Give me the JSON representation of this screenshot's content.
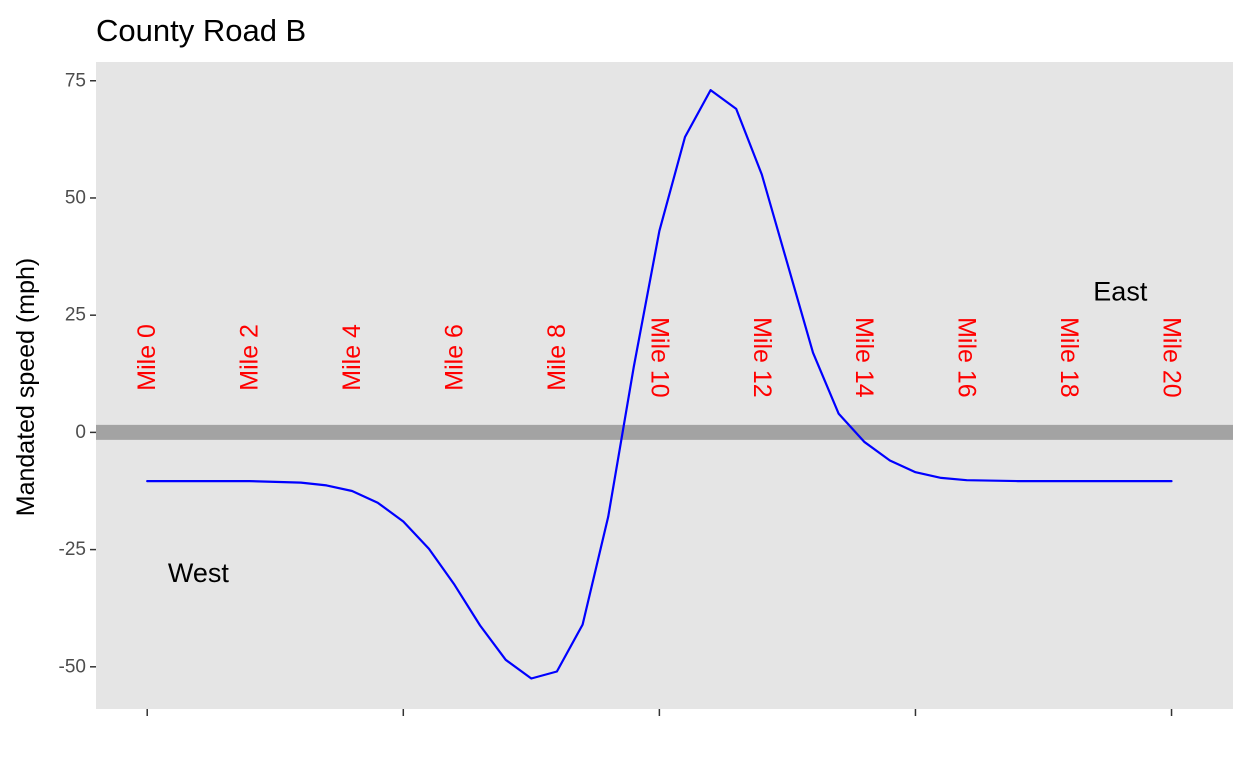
{
  "chart_data": {
    "type": "line",
    "title": "County Road B",
    "xlabel": "",
    "ylabel": "Mandated speed (mph)",
    "xlim": [
      -1,
      21.2
    ],
    "ylim": [
      -59,
      79
    ],
    "x_ticks": [
      0,
      5,
      10,
      15,
      20
    ],
    "y_ticks": [
      -50,
      -25,
      0,
      25,
      50,
      75
    ],
    "y_tick_labels": [
      "-50",
      "-25",
      "0",
      "25",
      "50",
      "75"
    ],
    "grid": false,
    "legend": "none",
    "reference_line": {
      "y": 0,
      "color": "#a3a3a3"
    },
    "series": [
      {
        "color": "#0000ff",
        "points": [
          [
            0,
            -10.4
          ],
          [
            1,
            -10.4
          ],
          [
            2,
            -10.4
          ],
          [
            3,
            -10.7
          ],
          [
            3.5,
            -11.3
          ],
          [
            4,
            -12.5
          ],
          [
            4.5,
            -15.0
          ],
          [
            5,
            -19.0
          ],
          [
            5.5,
            -24.8
          ],
          [
            6,
            -32.5
          ],
          [
            6.5,
            -41.2
          ],
          [
            7,
            -48.5
          ],
          [
            7.5,
            -52.5
          ],
          [
            8,
            -51.0
          ],
          [
            8.5,
            -41.0
          ],
          [
            9,
            -18.0
          ],
          [
            9.5,
            14.0
          ],
          [
            10,
            43.0
          ],
          [
            10.5,
            63.0
          ],
          [
            11,
            73.0
          ],
          [
            11.5,
            69.0
          ],
          [
            12,
            55.0
          ],
          [
            12.5,
            36.0
          ],
          [
            13,
            17.0
          ],
          [
            13.5,
            4.0
          ],
          [
            14,
            -2.0
          ],
          [
            14.5,
            -6.0
          ],
          [
            15,
            -8.5
          ],
          [
            15.5,
            -9.7
          ],
          [
            16,
            -10.2
          ],
          [
            17,
            -10.4
          ],
          [
            18,
            -10.4
          ],
          [
            19,
            -10.4
          ],
          [
            20,
            -10.4
          ]
        ]
      }
    ],
    "mile_markers": {
      "color": "#ff0000",
      "labels": [
        "Mile 0",
        "Mile 2",
        "Mile 4",
        "Mile 6",
        "Mile 8",
        "Mile 10",
        "Mile 12",
        "Mile 14",
        "Mile 16",
        "Mile 18",
        "Mile 20"
      ],
      "x": [
        0,
        2,
        4,
        6,
        8,
        10,
        12,
        14,
        16,
        18,
        20
      ],
      "y": 16
    },
    "annotations": [
      {
        "text": "West",
        "x": 1,
        "y": -30
      },
      {
        "text": "East",
        "x": 19,
        "y": 30
      }
    ]
  }
}
